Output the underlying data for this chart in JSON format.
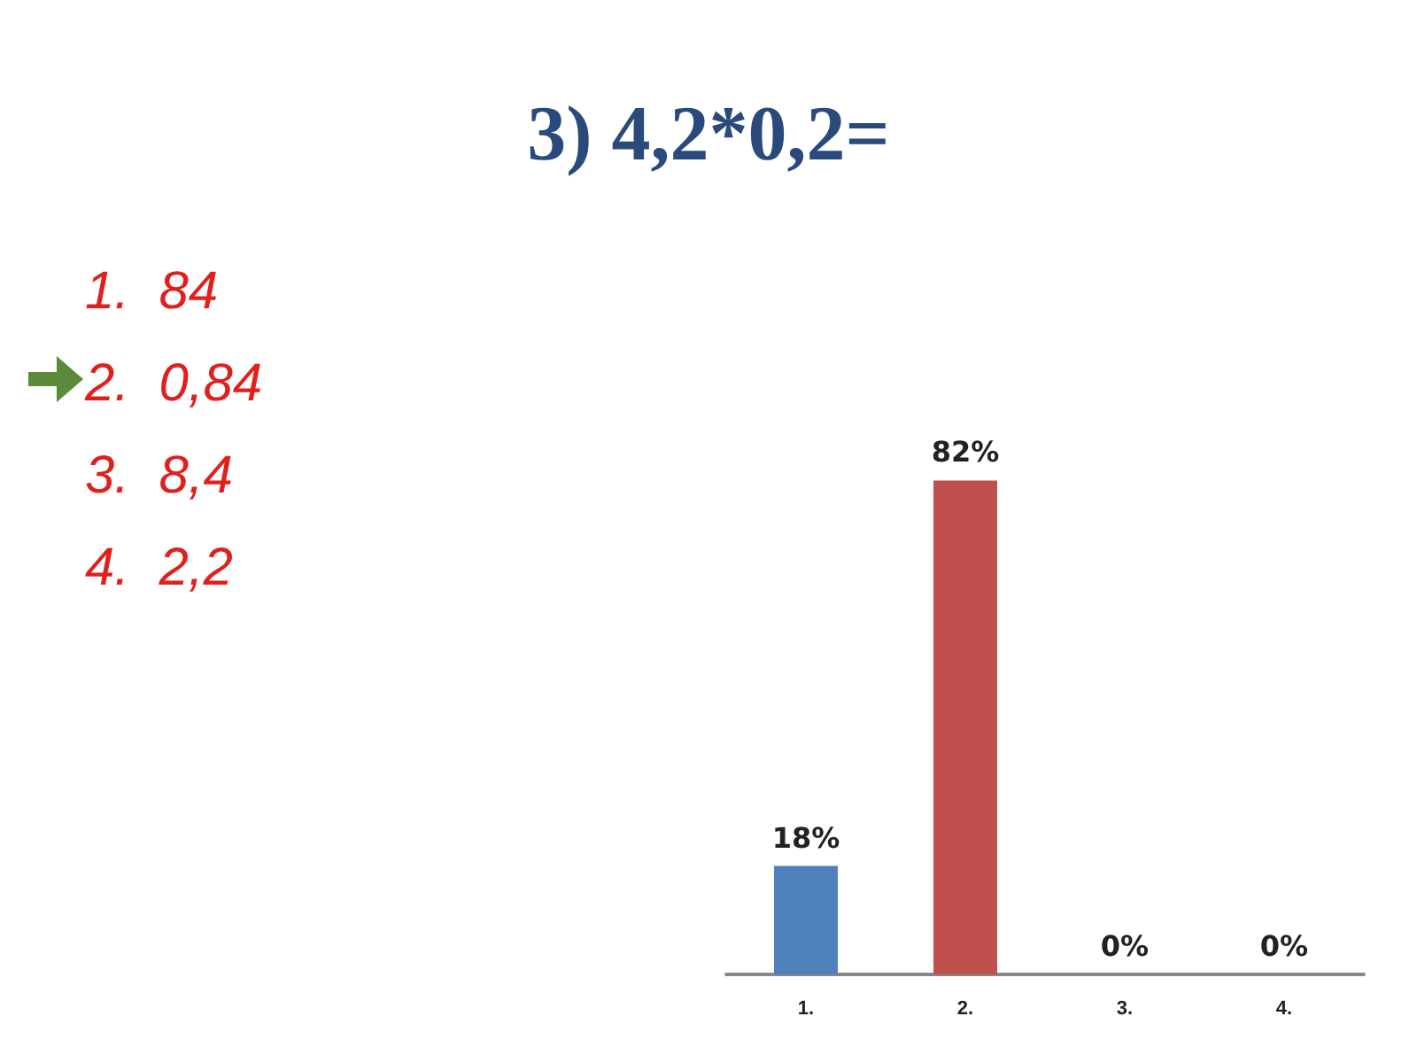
{
  "chart_data": {
    "type": "bar",
    "title": "3) 4,2*0,2=",
    "categories": [
      "1.",
      "2.",
      "3.",
      "4."
    ],
    "values": [
      18,
      82,
      0,
      0
    ],
    "value_labels": [
      "18%",
      "82%",
      "0%",
      "0%"
    ],
    "colors": [
      "#4f81bd",
      "#c0504d",
      "#1f1fc8",
      "#7a2a8a"
    ],
    "annotations": [
      "1.  84",
      "2.  0,84",
      "3.  8,4",
      "4.  2,2"
    ]
  }
}
